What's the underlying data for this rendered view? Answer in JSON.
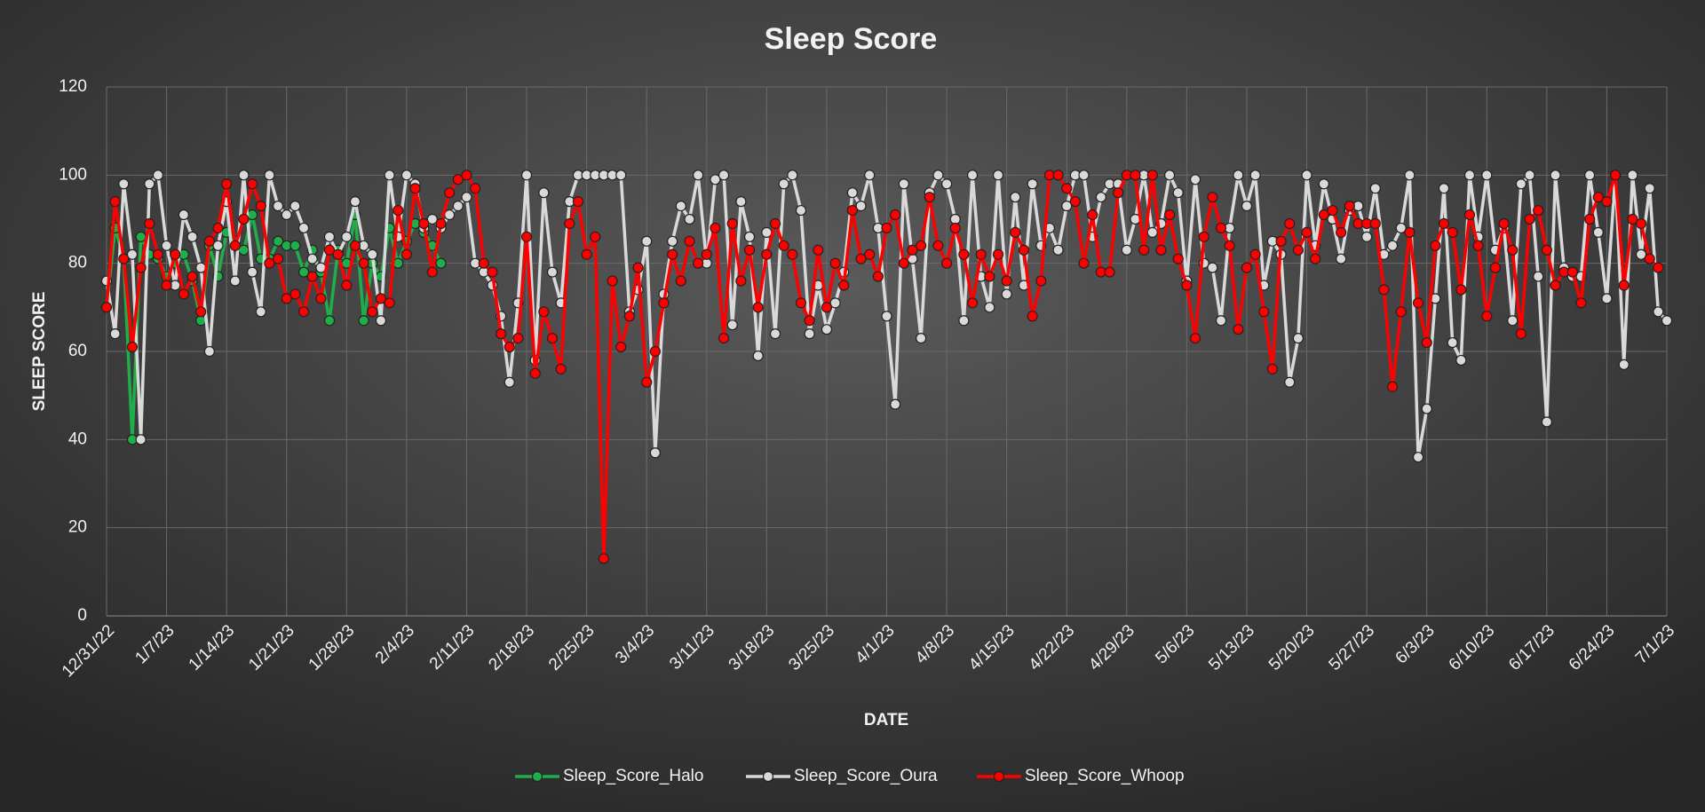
{
  "chart_data": {
    "type": "line",
    "title": "Sleep Score",
    "x_label": "DATE",
    "y_label": "SLEEP SCORE",
    "x": [
      0,
      1,
      2,
      3,
      4,
      5,
      6,
      7,
      8,
      9,
      10,
      11,
      12,
      13,
      14,
      15,
      16,
      17,
      18,
      19,
      20,
      21,
      22,
      23,
      24,
      25,
      26,
      27,
      28,
      29,
      30,
      31,
      32,
      33,
      34,
      35,
      36,
      37,
      38,
      39,
      40,
      41,
      42,
      43,
      44,
      45,
      46,
      47,
      48,
      49,
      50,
      51,
      52,
      53,
      54,
      55,
      56,
      57,
      58,
      59,
      60,
      61,
      62,
      63,
      64,
      65,
      66,
      67,
      68,
      69,
      70,
      71,
      72,
      73,
      74,
      75,
      76,
      77,
      78,
      79,
      80,
      81,
      82,
      83,
      84,
      85,
      86,
      87,
      88,
      89,
      90,
      91,
      92,
      93,
      94,
      95,
      96,
      97,
      98,
      99,
      100,
      101,
      102,
      103,
      104,
      105,
      106,
      107,
      108,
      109,
      110,
      111,
      112,
      113,
      114,
      115,
      116,
      117,
      118,
      119,
      120,
      121,
      122,
      123,
      124,
      125,
      126,
      127,
      128,
      129,
      130,
      131,
      132,
      133,
      134,
      135,
      136,
      137,
      138,
      139,
      140,
      141,
      142,
      143,
      144,
      145,
      146,
      147,
      148,
      149,
      150,
      151,
      152,
      153,
      154,
      155,
      156,
      157,
      158,
      159,
      160,
      161,
      162,
      163,
      164,
      165,
      166,
      167,
      168,
      169,
      170,
      171,
      172,
      173,
      174,
      175,
      176,
      177,
      178,
      179,
      180,
      181,
      182
    ],
    "xlim": [
      0,
      182
    ],
    "xticks": [
      {
        "value": 0,
        "label": "12/31/22"
      },
      {
        "value": 7,
        "label": "1/7/23"
      },
      {
        "value": 14,
        "label": "1/14/23"
      },
      {
        "value": 21,
        "label": "1/21/23"
      },
      {
        "value": 28,
        "label": "1/28/23"
      },
      {
        "value": 35,
        "label": "2/4/23"
      },
      {
        "value": 42,
        "label": "2/11/23"
      },
      {
        "value": 49,
        "label": "2/18/23"
      },
      {
        "value": 56,
        "label": "2/25/23"
      },
      {
        "value": 63,
        "label": "3/4/23"
      },
      {
        "value": 70,
        "label": "3/11/23"
      },
      {
        "value": 77,
        "label": "3/18/23"
      },
      {
        "value": 84,
        "label": "3/25/23"
      },
      {
        "value": 91,
        "label": "4/1/23"
      },
      {
        "value": 98,
        "label": "4/8/23"
      },
      {
        "value": 105,
        "label": "4/15/23"
      },
      {
        "value": 112,
        "label": "4/22/23"
      },
      {
        "value": 119,
        "label": "4/29/23"
      },
      {
        "value": 126,
        "label": "5/6/23"
      },
      {
        "value": 133,
        "label": "5/13/23"
      },
      {
        "value": 140,
        "label": "5/20/23"
      },
      {
        "value": 147,
        "label": "5/27/23"
      },
      {
        "value": 154,
        "label": "6/3/23"
      },
      {
        "value": 161,
        "label": "6/10/23"
      },
      {
        "value": 168,
        "label": "6/17/23"
      },
      {
        "value": 175,
        "label": "6/24/23"
      },
      {
        "value": 182,
        "label": "7/1/23"
      }
    ],
    "ylim": [
      0,
      120
    ],
    "yticks": [
      0,
      20,
      40,
      60,
      80,
      100,
      120
    ],
    "grid": true,
    "series": [
      {
        "name": "Sleep_Score_Halo",
        "color": "#1fae4a",
        "x": [
          0,
          1,
          2,
          3,
          4,
          5,
          6,
          7,
          8,
          9,
          10,
          11,
          12,
          13,
          14,
          15,
          16,
          17,
          18,
          19,
          20,
          21,
          22,
          23,
          24,
          25,
          26,
          27,
          28,
          29,
          30,
          31,
          32,
          33,
          34,
          35,
          36,
          37,
          38,
          39
        ],
        "values": [
          70,
          88,
          81,
          40,
          86,
          82,
          81,
          77,
          80,
          82,
          76,
          67,
          84,
          77,
          87,
          85,
          83,
          91,
          81,
          81,
          85,
          84,
          84,
          78,
          83,
          78,
          67,
          83,
          80,
          91,
          67,
          80,
          77,
          88,
          80,
          85,
          89,
          87,
          84,
          80
        ]
      },
      {
        "name": "Sleep_Score_Oura",
        "color": "#d9d9d9",
        "values": [
          76,
          64,
          98,
          82,
          40,
          98,
          100,
          84,
          75,
          91,
          86,
          79,
          60,
          84,
          94,
          76,
          100,
          78,
          69,
          100,
          93,
          91,
          93,
          88,
          81,
          79,
          86,
          82,
          86,
          94,
          84,
          82,
          67,
          100,
          86,
          100,
          98,
          88,
          90,
          88,
          91,
          93,
          95,
          80,
          78,
          75,
          68,
          53,
          71,
          100,
          58,
          96,
          78,
          71,
          94,
          100,
          100,
          100,
          100,
          100,
          100,
          69,
          74,
          85,
          37,
          73,
          85,
          93,
          90,
          100,
          80,
          99,
          100,
          66,
          94,
          86,
          59,
          87,
          64,
          98,
          100,
          92,
          64,
          75,
          65,
          71,
          78,
          96,
          93,
          100,
          88,
          68,
          48,
          98,
          81,
          63,
          96,
          100,
          98,
          90,
          67,
          100,
          77,
          70,
          100,
          73,
          95,
          75,
          98,
          84,
          88,
          83,
          93,
          100,
          100,
          86,
          95,
          98,
          98,
          83,
          90,
          100,
          87,
          89,
          100,
          96,
          76,
          99,
          80,
          79,
          67,
          88,
          100,
          93,
          100,
          75,
          85,
          82,
          53,
          63,
          100,
          84,
          98,
          90,
          81,
          92,
          93,
          86,
          97,
          82,
          84,
          88,
          100,
          36,
          47,
          72,
          97,
          62,
          58,
          100,
          86,
          100,
          83,
          88,
          67,
          98,
          100,
          77,
          44,
          100,
          79,
          77,
          77,
          100,
          87,
          72,
          100,
          57,
          100,
          82,
          97,
          69,
          67
        ]
      },
      {
        "name": "Sleep_Score_Whoop",
        "color": "#ff0000",
        "values": [
          70,
          94,
          81,
          61,
          79,
          89,
          82,
          75,
          82,
          73,
          77,
          69,
          85,
          88,
          98,
          84,
          90,
          98,
          93,
          80,
          81,
          72,
          73,
          69,
          77,
          72,
          83,
          82,
          75,
          84,
          80,
          69,
          72,
          71,
          92,
          82,
          97,
          89,
          78,
          89,
          96,
          99,
          100,
          97,
          80,
          78,
          64,
          61,
          63,
          86,
          55,
          69,
          63,
          56,
          89,
          94,
          82,
          86,
          13,
          76,
          61,
          68,
          79,
          53,
          60,
          71,
          82,
          76,
          85,
          80,
          82,
          88,
          63,
          89,
          76,
          83,
          70,
          82,
          89,
          84,
          82,
          71,
          67,
          83,
          70,
          80,
          75,
          92,
          81,
          82,
          77,
          88,
          91,
          80,
          83,
          84,
          95,
          84,
          80,
          88,
          82,
          71,
          82,
          77,
          82,
          76,
          87,
          83,
          68,
          76,
          100,
          100,
          97,
          94,
          80,
          91,
          78,
          78,
          96,
          100,
          100,
          83,
          100,
          83,
          91,
          81,
          75,
          63,
          86,
          95,
          88,
          84,
          65,
          79,
          82,
          69,
          56,
          85,
          89,
          83,
          87,
          81,
          91,
          92,
          87,
          93,
          89,
          89,
          89,
          74,
          52,
          69,
          87,
          71,
          62,
          84,
          89,
          87,
          74,
          91,
          84,
          68,
          79,
          89,
          83,
          64,
          90,
          92,
          83,
          75,
          78,
          78,
          71,
          90,
          95,
          94,
          100,
          75,
          90,
          89,
          81,
          79,
          null
        ]
      }
    ]
  }
}
